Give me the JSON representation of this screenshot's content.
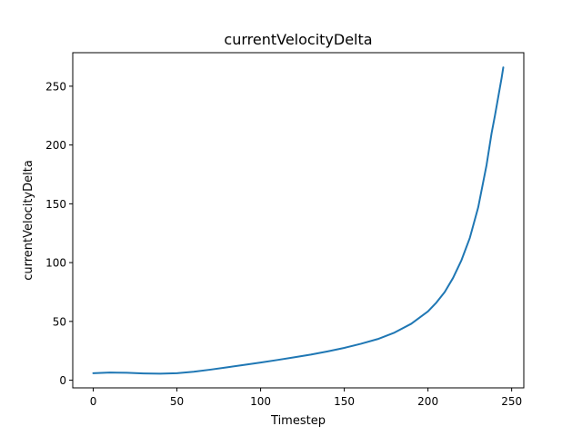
{
  "chart_data": {
    "type": "line",
    "title": "currentVelocityDelta",
    "xlabel": "Timestep",
    "ylabel": "currentVelocityDelta",
    "xlim": [
      -12.25,
      257.25
    ],
    "ylim": [
      -6.5,
      278.5
    ],
    "xticks": [
      0,
      50,
      100,
      150,
      200,
      250
    ],
    "yticks": [
      0,
      50,
      100,
      150,
      200,
      250
    ],
    "grid": false,
    "series": [
      {
        "color": "#1f77b4",
        "x": [
          0,
          10,
          20,
          30,
          40,
          50,
          60,
          70,
          80,
          90,
          100,
          110,
          120,
          130,
          140,
          150,
          160,
          170,
          180,
          190,
          200,
          205,
          210,
          215,
          220,
          225,
          230,
          235,
          238,
          240,
          242,
          244,
          245
        ],
        "y": [
          6,
          6.5,
          6.3,
          5.8,
          5.6,
          6,
          7.2,
          9,
          11,
          13,
          15,
          17.2,
          19.5,
          21.8,
          24.5,
          27.5,
          31,
          35,
          40.5,
          48,
          58.5,
          66,
          75,
          87,
          102,
          121,
          147,
          183,
          210,
          225,
          241,
          257,
          266
        ]
      }
    ]
  }
}
